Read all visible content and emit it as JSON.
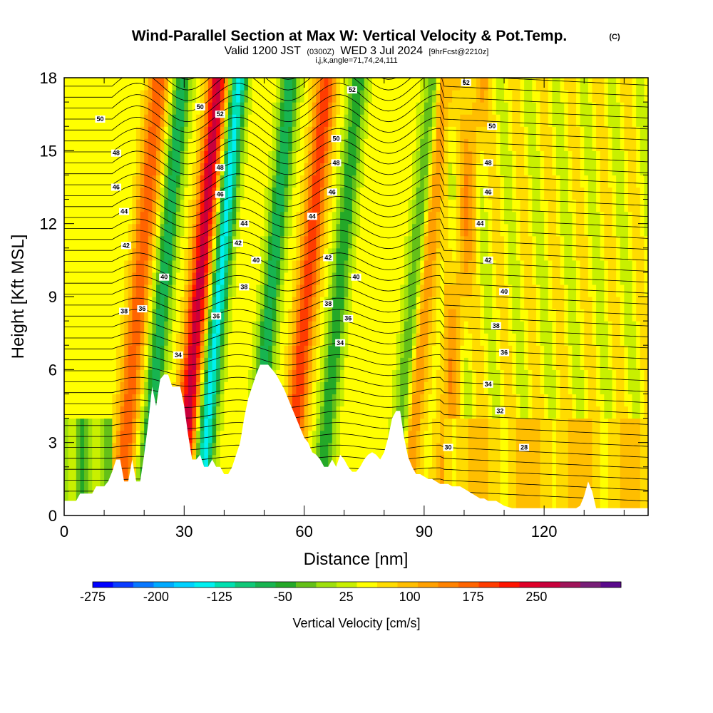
{
  "header": {
    "title": "Wind-Parallel Section at Max W: Vertical Velocity & Pot.Temp.",
    "title_suffix": "(C)",
    "valid_prefix": "Valid 1200 JST",
    "valid_utc": "(0300Z)",
    "valid_date": "WED 3 Jul 2024",
    "forecast": "[9hrFcst@2210z]",
    "indices": "i,j,k,angle=71,74,24,111"
  },
  "chart_data": {
    "type": "heatmap",
    "xlabel": "Distance [nm]",
    "ylabel": "Height [Kft MSL]",
    "xlim": [
      0,
      146
    ],
    "ylim": [
      0,
      18
    ],
    "x_ticks": [
      "0",
      "30",
      "60",
      "90",
      "120"
    ],
    "y_ticks": [
      "0",
      "3",
      "6",
      "9",
      "12",
      "15",
      "18"
    ],
    "colorbar": {
      "label": "Vertical Velocity [cm/s]",
      "tick_labels": [
        "-275",
        "-200",
        "-125",
        "-50",
        "25",
        "100",
        "175",
        "250"
      ],
      "colors": [
        "#0000ff",
        "#0a3cff",
        "#0878ff",
        "#00aaff",
        "#00d2ff",
        "#00f0f0",
        "#00e0b0",
        "#10c878",
        "#18b450",
        "#24a828",
        "#64c018",
        "#9ee00c",
        "#c8f000",
        "#ffff00",
        "#ffdc00",
        "#ffbe00",
        "#ffa000",
        "#ff8200",
        "#ff6400",
        "#ff3c00",
        "#ff1400",
        "#e00028",
        "#c8003c",
        "#a0145a",
        "#781e78",
        "#5a0a8c"
      ]
    },
    "updrafts": [
      {
        "x": 17,
        "strength": 0.6
      },
      {
        "x": 32,
        "strength": 1.0
      },
      {
        "x": 59,
        "strength": 0.7
      },
      {
        "x": 88,
        "strength": 0.55
      },
      {
        "x": 97,
        "strength": 0.3
      }
    ],
    "downdrafts": [
      {
        "x": 23,
        "strength": 0.6
      },
      {
        "x": 37,
        "strength": 0.9
      },
      {
        "x": 50,
        "strength": 0.6
      },
      {
        "x": 67,
        "strength": 0.5
      },
      {
        "x": 86,
        "strength": 0.6
      }
    ],
    "terrain": [
      [
        0,
        0.6
      ],
      [
        3,
        0.6
      ],
      [
        4,
        0.9
      ],
      [
        7,
        0.9
      ],
      [
        8,
        1.2
      ],
      [
        10,
        1.2
      ],
      [
        11,
        1.4
      ],
      [
        12,
        1.8
      ],
      [
        13,
        2.3
      ],
      [
        14,
        2.3
      ],
      [
        15,
        1.4
      ],
      [
        16,
        1.4
      ],
      [
        17,
        2.3
      ],
      [
        18,
        1.4
      ],
      [
        19,
        1.4
      ],
      [
        20,
        2.5
      ],
      [
        21,
        3.8
      ],
      [
        22,
        5.3
      ],
      [
        23,
        4.5
      ],
      [
        24,
        5.6
      ],
      [
        25,
        5.8
      ],
      [
        26,
        5.8
      ],
      [
        27,
        5.3
      ],
      [
        28,
        5.3
      ],
      [
        29,
        5.3
      ],
      [
        30,
        4.5
      ],
      [
        31,
        3.3
      ],
      [
        32,
        2.3
      ],
      [
        33,
        2.3
      ],
      [
        34,
        2.5
      ],
      [
        35,
        2.0
      ],
      [
        36,
        2.0
      ],
      [
        37,
        2.3
      ],
      [
        38,
        2.0
      ],
      [
        39,
        2.0
      ],
      [
        40,
        1.7
      ],
      [
        41,
        1.7
      ],
      [
        42,
        2.0
      ],
      [
        43,
        2.5
      ],
      [
        44,
        3.0
      ],
      [
        45,
        4.0
      ],
      [
        46,
        4.8
      ],
      [
        47,
        5.3
      ],
      [
        48,
        5.8
      ],
      [
        49,
        6.2
      ],
      [
        50,
        6.2
      ],
      [
        51,
        6.2
      ],
      [
        52,
        6.0
      ],
      [
        53,
        5.8
      ],
      [
        54,
        5.5
      ],
      [
        55,
        5.2
      ],
      [
        56,
        4.8
      ],
      [
        57,
        4.4
      ],
      [
        58,
        4.0
      ],
      [
        59,
        3.6
      ],
      [
        60,
        3.2
      ],
      [
        61,
        3.0
      ],
      [
        62,
        2.6
      ],
      [
        63,
        2.5
      ],
      [
        64,
        2.3
      ],
      [
        65,
        2.0
      ],
      [
        66,
        2.0
      ],
      [
        67,
        2.3
      ],
      [
        68,
        2.0
      ],
      [
        69,
        2.5
      ],
      [
        70,
        2.3
      ],
      [
        71,
        2.0
      ],
      [
        72,
        1.8
      ],
      [
        73,
        1.8
      ],
      [
        74,
        2.0
      ],
      [
        75,
        2.3
      ],
      [
        76,
        2.5
      ],
      [
        77,
        2.6
      ],
      [
        78,
        2.5
      ],
      [
        79,
        2.3
      ],
      [
        80,
        2.6
      ],
      [
        81,
        3.2
      ],
      [
        82,
        4.0
      ],
      [
        83,
        4.3
      ],
      [
        84,
        4.3
      ],
      [
        85,
        3.2
      ],
      [
        86,
        2.4
      ],
      [
        87,
        2.0
      ],
      [
        88,
        1.7
      ],
      [
        89,
        1.7
      ],
      [
        90,
        1.6
      ],
      [
        91,
        1.5
      ],
      [
        92,
        1.5
      ],
      [
        93,
        1.4
      ],
      [
        94,
        1.3
      ],
      [
        95,
        1.3
      ],
      [
        96,
        1.3
      ],
      [
        97,
        1.2
      ],
      [
        98,
        1.2
      ],
      [
        99,
        1.2
      ],
      [
        100,
        1.1
      ],
      [
        101,
        1.0
      ],
      [
        102,
        0.9
      ],
      [
        103,
        0.8
      ],
      [
        104,
        0.7
      ],
      [
        105,
        0.7
      ],
      [
        106,
        0.6
      ],
      [
        107,
        0.6
      ],
      [
        108,
        0.6
      ],
      [
        109,
        0.5
      ],
      [
        110,
        0.4
      ],
      [
        112,
        0.3
      ],
      [
        115,
        0.3
      ],
      [
        118,
        0.3
      ],
      [
        120,
        0.3
      ],
      [
        125,
        0.3
      ],
      [
        128,
        0.3
      ],
      [
        129,
        0.4
      ],
      [
        130,
        0.8
      ],
      [
        131,
        1.4
      ],
      [
        132,
        1.0
      ],
      [
        133,
        0.3
      ],
      [
        134,
        0.3
      ],
      [
        146,
        0.3
      ]
    ],
    "contour_labels": [
      {
        "text": "50",
        "x": 9,
        "y": 16.3
      },
      {
        "text": "48",
        "x": 13,
        "y": 14.9
      },
      {
        "text": "46",
        "x": 13,
        "y": 13.5
      },
      {
        "text": "44",
        "x": 15,
        "y": 12.5
      },
      {
        "text": "42",
        "x": 15.5,
        "y": 11.1
      },
      {
        "text": "40",
        "x": 25,
        "y": 9.8
      },
      {
        "text": "38",
        "x": 15,
        "y": 8.4
      },
      {
        "text": "36",
        "x": 19.5,
        "y": 8.5
      },
      {
        "text": "34",
        "x": 28.5,
        "y": 6.6
      },
      {
        "text": "50",
        "x": 34,
        "y": 16.8
      },
      {
        "text": "52",
        "x": 39,
        "y": 16.5
      },
      {
        "text": "48",
        "x": 39,
        "y": 14.3
      },
      {
        "text": "46",
        "x": 39,
        "y": 13.2
      },
      {
        "text": "44",
        "x": 45,
        "y": 12.0
      },
      {
        "text": "42",
        "x": 43.5,
        "y": 11.2
      },
      {
        "text": "40",
        "x": 48,
        "y": 10.5
      },
      {
        "text": "38",
        "x": 45,
        "y": 9.4
      },
      {
        "text": "36",
        "x": 38,
        "y": 8.2
      },
      {
        "text": "52",
        "x": 72,
        "y": 17.5
      },
      {
        "text": "50",
        "x": 68,
        "y": 15.5
      },
      {
        "text": "48",
        "x": 68,
        "y": 14.5
      },
      {
        "text": "46",
        "x": 67,
        "y": 13.3
      },
      {
        "text": "44",
        "x": 62,
        "y": 12.3
      },
      {
        "text": "42",
        "x": 66,
        "y": 10.6
      },
      {
        "text": "40",
        "x": 73,
        "y": 9.8
      },
      {
        "text": "38",
        "x": 66,
        "y": 8.7
      },
      {
        "text": "36",
        "x": 71,
        "y": 8.1
      },
      {
        "text": "34",
        "x": 69,
        "y": 7.1
      },
      {
        "text": "52",
        "x": 100.5,
        "y": 17.8
      },
      {
        "text": "50",
        "x": 107,
        "y": 16.0
      },
      {
        "text": "48",
        "x": 106,
        "y": 14.5
      },
      {
        "text": "46",
        "x": 106,
        "y": 13.3
      },
      {
        "text": "44",
        "x": 104,
        "y": 12.0
      },
      {
        "text": "42",
        "x": 106,
        "y": 10.5
      },
      {
        "text": "40",
        "x": 110,
        "y": 9.2
      },
      {
        "text": "38",
        "x": 108,
        "y": 7.8
      },
      {
        "text": "36",
        "x": 110,
        "y": 6.7
      },
      {
        "text": "34",
        "x": 106,
        "y": 5.4
      },
      {
        "text": "32",
        "x": 109,
        "y": 4.3
      },
      {
        "text": "30",
        "x": 96,
        "y": 2.8
      },
      {
        "text": "28",
        "x": 115,
        "y": 2.8
      }
    ]
  }
}
